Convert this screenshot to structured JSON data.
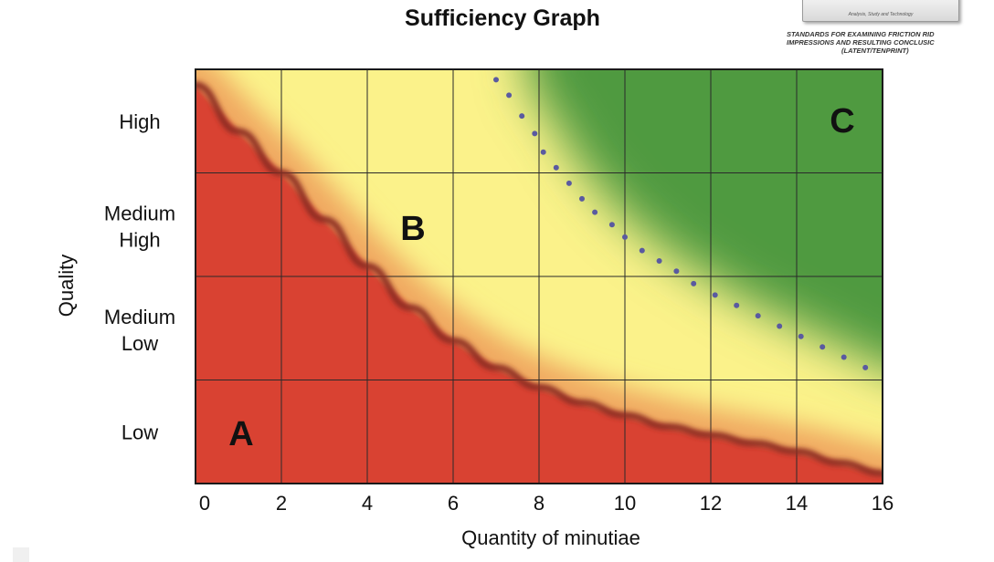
{
  "header": {
    "logo_text": "Analysis, Study and Technology",
    "standards_line1": "STANDARDS FOR EXAMINING FRICTION RID",
    "standards_line2": "IMPRESSIONS AND RESULTING CONCLUSIC",
    "standards_line3": "(LATENT/TENPRINT)"
  },
  "chart_data": {
    "type": "area",
    "title": "Sufficiency Graph",
    "xlabel": "Quantity of minutiae",
    "ylabel": "Quality",
    "xlim": [
      0,
      16
    ],
    "x_ticks": [
      "0",
      "2",
      "4",
      "6",
      "8",
      "10",
      "12",
      "14",
      "16"
    ],
    "y_categories": [
      "Low",
      "Medium Low",
      "Medium High",
      "High"
    ],
    "grid": true,
    "regions": [
      {
        "label": "A",
        "color": "#d94330"
      },
      {
        "label": "B",
        "color": "#fbf28a"
      },
      {
        "label": "C",
        "color": "#4f9a3f"
      }
    ],
    "series": [
      {
        "style": "solid-curve",
        "color": "#8a2a22",
        "x": [
          0,
          1,
          2,
          3,
          4,
          5,
          6,
          7,
          8,
          9,
          10,
          11,
          12,
          13,
          14,
          15,
          16
        ],
        "y": [
          3.85,
          3.4,
          3.0,
          2.55,
          2.1,
          1.7,
          1.38,
          1.12,
          0.93,
          0.78,
          0.66,
          0.55,
          0.47,
          0.39,
          0.31,
          0.2,
          0.1
        ]
      },
      {
        "style": "dotted",
        "color": "#5a5aa0",
        "x": [
          7.0,
          7.3,
          7.6,
          7.9,
          8.1,
          8.4,
          8.7,
          9.0,
          9.3,
          9.7,
          10.0,
          10.4,
          10.8,
          11.2,
          11.6,
          12.1,
          12.6,
          13.1,
          13.6,
          14.1,
          14.6,
          15.1,
          15.6
        ],
        "y": [
          3.9,
          3.75,
          3.55,
          3.38,
          3.2,
          3.05,
          2.9,
          2.75,
          2.62,
          2.5,
          2.38,
          2.25,
          2.15,
          2.05,
          1.93,
          1.82,
          1.72,
          1.62,
          1.52,
          1.42,
          1.32,
          1.22,
          1.12
        ]
      }
    ]
  }
}
